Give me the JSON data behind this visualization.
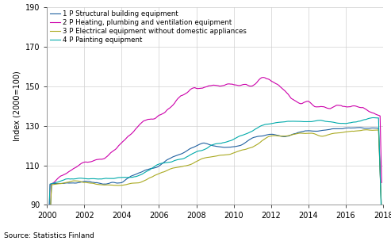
{
  "title": "",
  "ylabel": "Index (2000=100)",
  "source": "Source: Statistics Finland",
  "xlim": [
    2000,
    2018
  ],
  "ylim": [
    90,
    190
  ],
  "yticks": [
    90,
    110,
    130,
    150,
    170,
    190
  ],
  "xticks": [
    2000,
    2002,
    2004,
    2006,
    2008,
    2010,
    2012,
    2014,
    2016,
    2018
  ],
  "colors": {
    "structural": "#2060a0",
    "heating": "#cc00aa",
    "electrical": "#aaaa22",
    "painting": "#00aaaa"
  },
  "legend": [
    "1 P Structural building equipment",
    "2 P Heating, plumbing and ventilation equipment",
    "3 P Electrical equipment without domestic appliances",
    "4 P Painting equipment"
  ],
  "line_width": 0.8
}
